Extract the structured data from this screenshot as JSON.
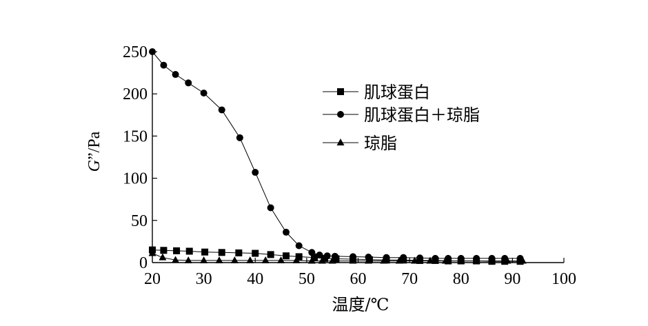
{
  "chart_data": {
    "type": "line",
    "xlabel": "温度/℃",
    "ylabel_italic": "G",
    "ylabel_rest": "”/Pa",
    "xlim": [
      20,
      100
    ],
    "ylim": [
      0,
      250
    ],
    "xticks": [
      20,
      30,
      40,
      50,
      60,
      70,
      80,
      90,
      100
    ],
    "yticks": [
      0,
      50,
      100,
      150,
      200,
      250
    ],
    "grid": false,
    "legend_position": "upper-right",
    "series": [
      {
        "name": "肌球蛋白",
        "marker": "square",
        "x": [
          20,
          22.2,
          24.7,
          27.2,
          30.2,
          33.5,
          36.8,
          40,
          43,
          46,
          48.5,
          51.5,
          53.5,
          55.7,
          59,
          62.2,
          65.5,
          68.8,
          72,
          75,
          77.5,
          80,
          83,
          86,
          88.5,
          91.5
        ],
        "y": [
          15,
          14.5,
          14,
          13.5,
          12.5,
          12,
          11.5,
          11,
          9.5,
          8,
          7,
          6,
          5,
          4.5,
          4,
          3.5,
          3,
          3,
          2.5,
          2.5,
          2,
          2,
          2,
          1.5,
          1.5,
          1.5
        ]
      },
      {
        "name": "肌球蛋白＋琼脂",
        "marker": "circle",
        "x": [
          20,
          22.2,
          24.5,
          27,
          30,
          33.5,
          37,
          40,
          43,
          46,
          48.5,
          51,
          52.5,
          54,
          55.5,
          59,
          62,
          65.5,
          68.8,
          72,
          75,
          77.5,
          80,
          83,
          86,
          88.5,
          91.5
        ],
        "y": [
          250,
          234,
          223,
          213,
          201,
          181,
          148,
          107,
          65,
          36,
          20,
          12,
          9,
          8,
          7.5,
          7,
          6.5,
          6,
          6,
          5.5,
          5,
          5,
          5,
          5,
          5,
          5,
          5
        ]
      },
      {
        "name": "琼脂",
        "marker": "triangle",
        "x": [
          20,
          22,
          24.5,
          27,
          30,
          33,
          36,
          39,
          42,
          45,
          48,
          51,
          53,
          55,
          59,
          62,
          65,
          68,
          71,
          74,
          77,
          80,
          83,
          86,
          89,
          92
        ],
        "y": [
          11,
          6,
          3,
          2.5,
          2.5,
          2.5,
          2.5,
          2.5,
          2.5,
          2.5,
          2.5,
          2,
          2,
          2,
          2,
          2,
          2,
          2,
          2,
          2,
          2,
          2,
          2,
          2,
          2,
          2
        ]
      }
    ]
  }
}
